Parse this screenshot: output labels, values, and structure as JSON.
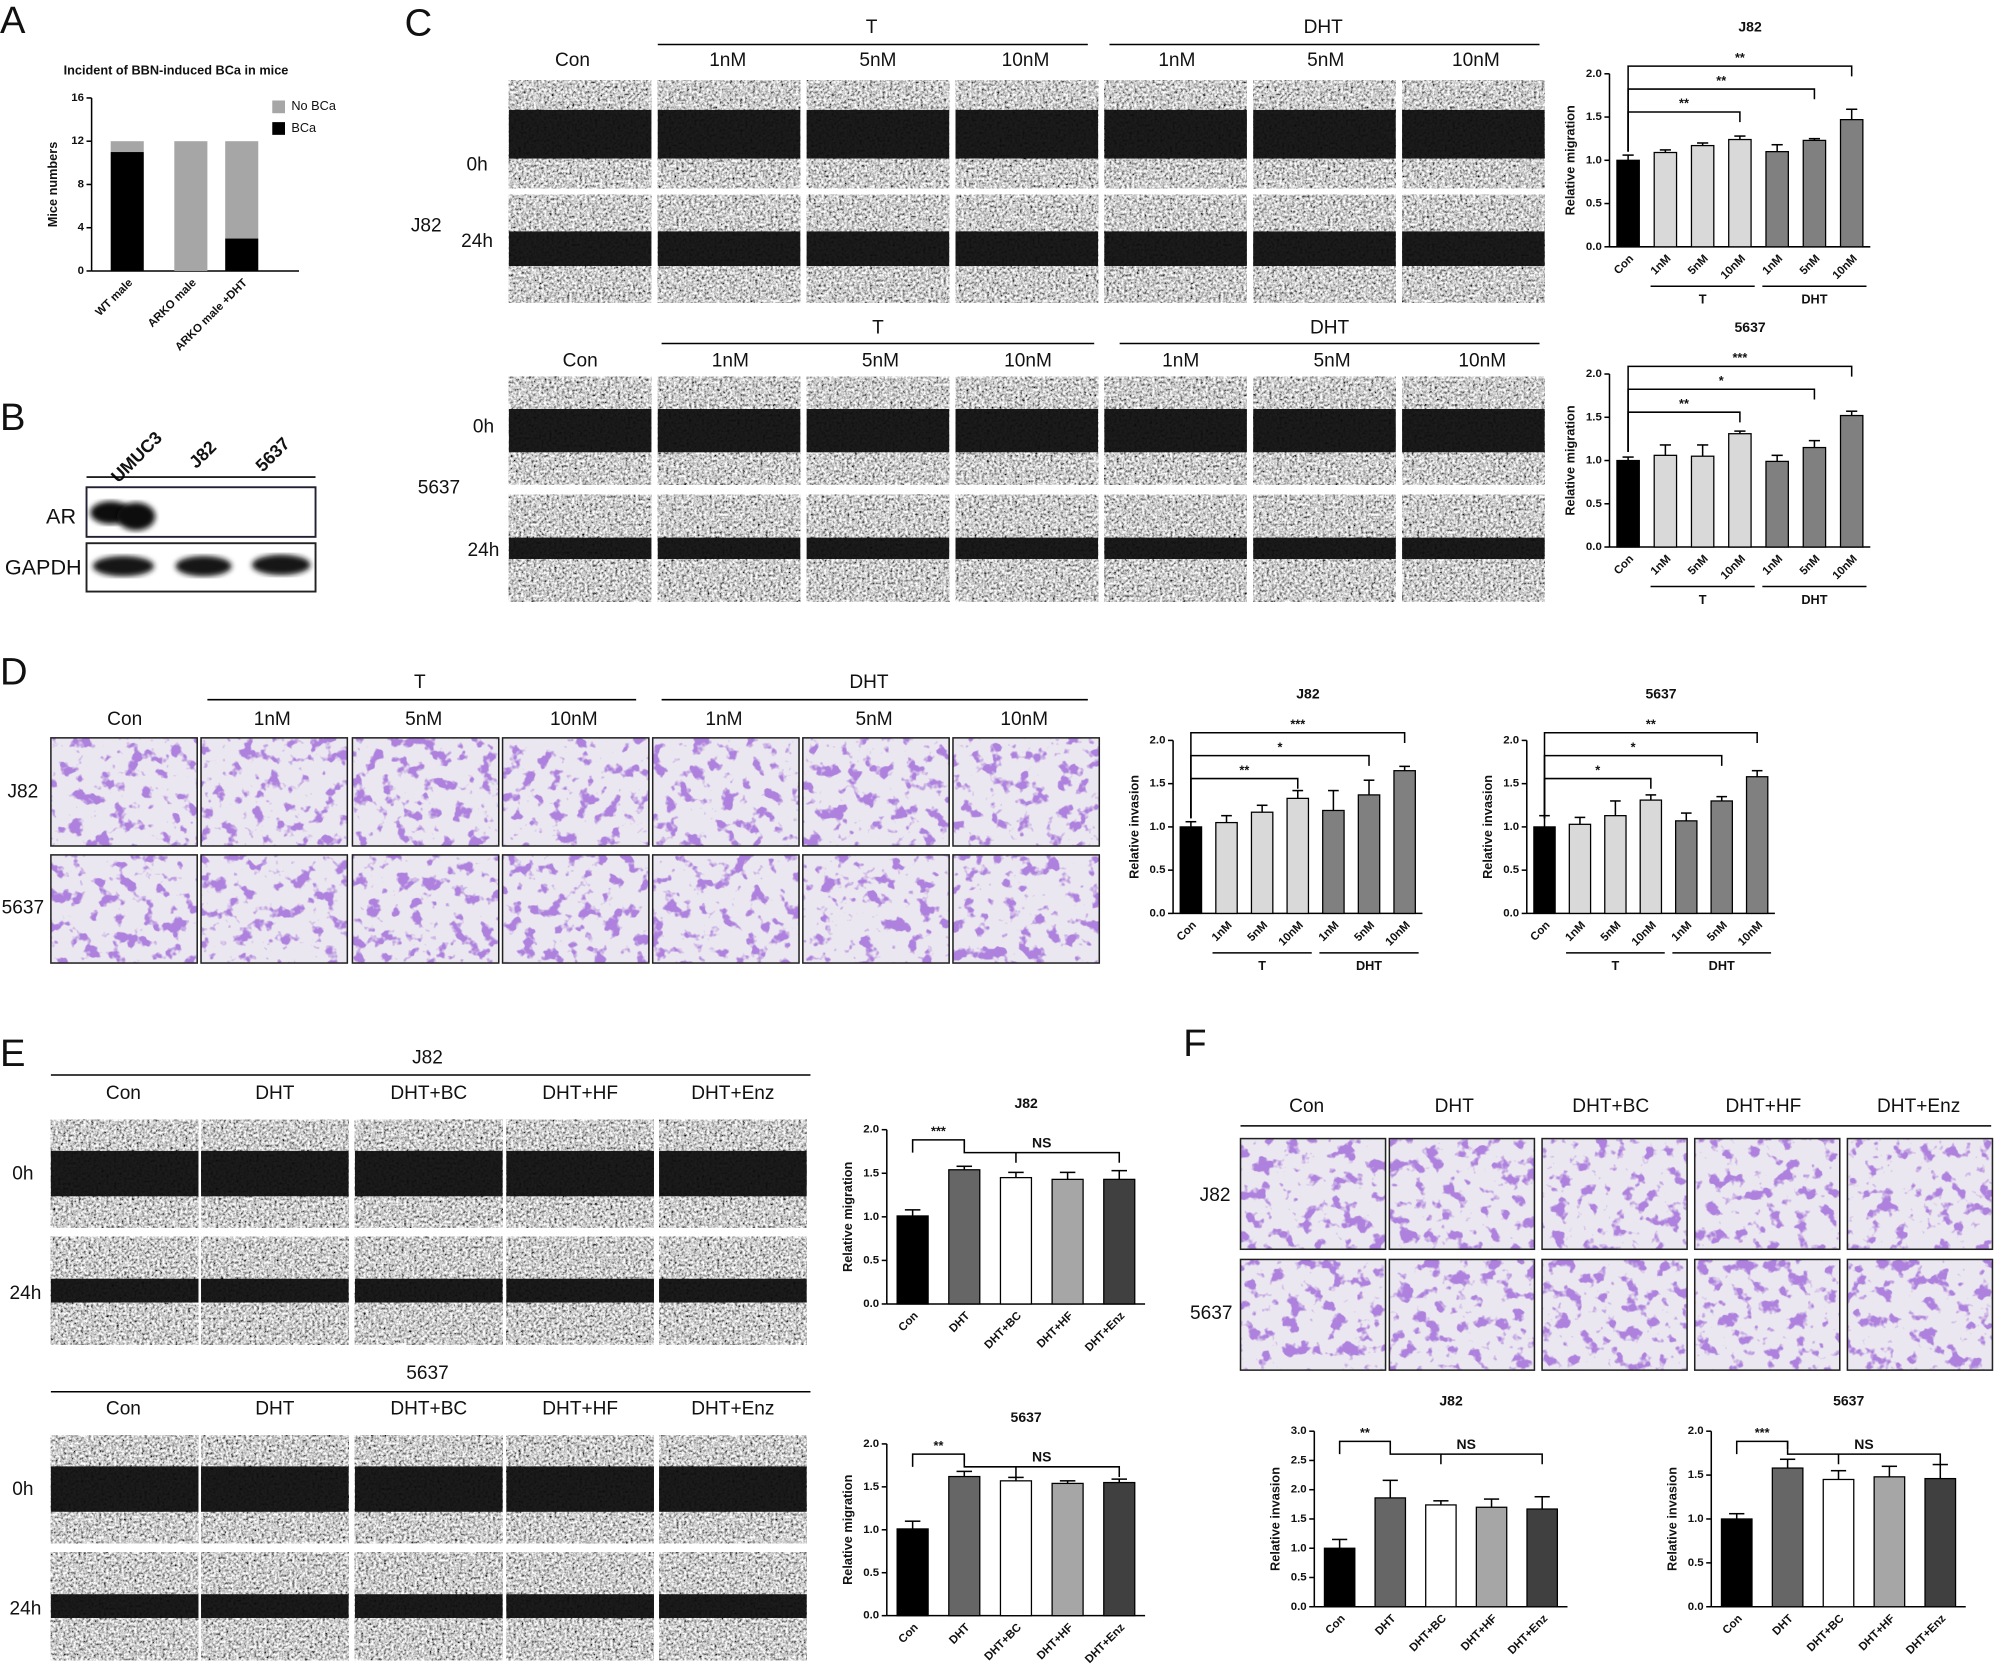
{
  "panel_labels": [
    "A",
    "B",
    "C",
    "D",
    "E",
    "F"
  ],
  "blot": {
    "lanes": [
      "UMUC3",
      "J82",
      "5637"
    ],
    "rows": [
      "AR",
      "GAPDH"
    ]
  },
  "panel_C": {
    "groups": [
      "T",
      "DHT"
    ],
    "conditions": [
      "Con",
      "1nM",
      "5nM",
      "10nM",
      "1nM",
      "5nM",
      "10nM"
    ],
    "timepoints": [
      "0h",
      "24h"
    ],
    "cell_lines": [
      "J82",
      "5637"
    ]
  },
  "panel_D": {
    "groups": [
      "T",
      "DHT"
    ],
    "conditions": [
      "Con",
      "1nM",
      "5nM",
      "10nM",
      "1nM",
      "5nM",
      "10nM"
    ],
    "cell_lines": [
      "J82",
      "5637"
    ]
  },
  "panel_E": {
    "cell_lines": [
      "J82",
      "5637"
    ],
    "conditions": [
      "Con",
      "DHT",
      "DHT+BC",
      "DHT+HF",
      "DHT+Enz"
    ],
    "timepoints": [
      "0h",
      "24h"
    ]
  },
  "panel_F": {
    "conditions": [
      "Con",
      "DHT",
      "DHT+BC",
      "DHT+HF",
      "DHT+Enz"
    ],
    "cell_lines": [
      "J82",
      "5637"
    ]
  },
  "chart_data": [
    {
      "type": "stacked_bar",
      "title": "Incident of BBN-induced BCa in mice",
      "y_label": "Mice numbers",
      "categories": [
        "WT male",
        "ARKO male",
        "ARKO male +DHT"
      ],
      "series": [
        {
          "name": "BCa",
          "color": "#000000",
          "values": [
            11,
            0,
            3
          ]
        },
        {
          "name": "No BCa",
          "color": "#a6a6a6",
          "values": [
            1,
            12,
            9
          ]
        }
      ],
      "ylim": [
        0,
        16
      ],
      "yticks": [
        0,
        4,
        8,
        12,
        16
      ]
    },
    {
      "type": "bar",
      "title": "J82",
      "y_label": "Relative migration",
      "categories": [
        "Con",
        "1nM",
        "5nM",
        "10nM",
        "1nM",
        "5nM",
        "10nM"
      ],
      "values": [
        1.0,
        1.09,
        1.17,
        1.24,
        1.1,
        1.23,
        1.47
      ],
      "errors": [
        0.06,
        0.03,
        0.03,
        0.04,
        0.08,
        0.02,
        0.12
      ],
      "colors": [
        "#000000",
        "#d9d9d9",
        "#d9d9d9",
        "#d9d9d9",
        "#808080",
        "#808080",
        "#808080"
      ],
      "ylim": [
        0,
        2
      ],
      "yticks": [
        {
          "value": 0,
          "label": "0.0"
        },
        0.5,
        {
          "value": 1,
          "label": "1.0"
        },
        1.5,
        {
          "value": 2,
          "label": "2.0"
        }
      ],
      "significance": [
        null,
        null,
        null,
        "**",
        null,
        "**",
        "**"
      ],
      "x_groups": [
        "T",
        "DHT"
      ]
    },
    {
      "type": "bar",
      "title": "5637",
      "y_label": "Relative migration",
      "categories": [
        "Con",
        "1nM",
        "5nM",
        "10nM",
        "1nM",
        "5nM",
        "10nM"
      ],
      "values": [
        1.0,
        1.06,
        1.05,
        1.31,
        0.99,
        1.15,
        1.52
      ],
      "errors": [
        0.04,
        0.12,
        0.13,
        0.03,
        0.07,
        0.08,
        0.05
      ],
      "colors": [
        "#000000",
        "#d9d9d9",
        "#d9d9d9",
        "#d9d9d9",
        "#808080",
        "#808080",
        "#808080"
      ],
      "ylim": [
        0,
        2
      ],
      "yticks": [
        {
          "value": 0,
          "label": "0.0"
        },
        0.5,
        {
          "value": 1,
          "label": "1.0"
        },
        1.5,
        {
          "value": 2,
          "label": "2.0"
        }
      ],
      "significance": [
        null,
        null,
        null,
        "**",
        null,
        "*",
        "***"
      ],
      "x_groups": [
        "T",
        "DHT"
      ]
    },
    {
      "type": "bar",
      "title": "J82",
      "y_label": "Relative invasion",
      "categories": [
        "Con",
        "1nM",
        "5nM",
        "10nM",
        "1nM",
        "5nM",
        "10nM"
      ],
      "values": [
        1.0,
        1.05,
        1.17,
        1.33,
        1.19,
        1.37,
        1.65
      ],
      "errors": [
        0.06,
        0.08,
        0.08,
        0.09,
        0.23,
        0.17,
        0.05
      ],
      "colors": [
        "#000000",
        "#d9d9d9",
        "#d9d9d9",
        "#d9d9d9",
        "#808080",
        "#808080",
        "#808080"
      ],
      "ylim": [
        0,
        2
      ],
      "yticks": [
        {
          "value": 0,
          "label": "0.0"
        },
        0.5,
        {
          "value": 1,
          "label": "1.0"
        },
        1.5,
        {
          "value": 2,
          "label": "2.0"
        }
      ],
      "significance": [
        null,
        null,
        null,
        "**",
        null,
        "*",
        "***"
      ],
      "x_groups": [
        "T",
        "DHT"
      ]
    },
    {
      "type": "bar",
      "title": "5637",
      "y_label": "Relative invasion",
      "categories": [
        "Con",
        "1nM",
        "5nM",
        "10nM",
        "1nM",
        "5nM",
        "10nM"
      ],
      "values": [
        1.0,
        1.03,
        1.13,
        1.31,
        1.07,
        1.3,
        1.58
      ],
      "errors": [
        0.13,
        0.08,
        0.17,
        0.06,
        0.09,
        0.05,
        0.07
      ],
      "colors": [
        "#000000",
        "#d9d9d9",
        "#d9d9d9",
        "#d9d9d9",
        "#808080",
        "#808080",
        "#808080"
      ],
      "ylim": [
        0,
        2
      ],
      "yticks": [
        {
          "value": 0,
          "label": "0.0"
        },
        0.5,
        {
          "value": 1,
          "label": "1.0"
        },
        1.5,
        {
          "value": 2,
          "label": "2.0"
        }
      ],
      "significance": [
        null,
        null,
        null,
        "*",
        null,
        "*",
        "**"
      ],
      "x_groups": [
        "T",
        "DHT"
      ]
    },
    {
      "type": "bar",
      "title": "J82",
      "y_label": "Relative migration",
      "categories": [
        "Con",
        "DHT",
        "DHT+BC",
        "DHT+HF",
        "DHT+Enz"
      ],
      "values": [
        1.01,
        1.54,
        1.45,
        1.43,
        1.43
      ],
      "errors": [
        0.07,
        0.04,
        0.06,
        0.08,
        0.1
      ],
      "colors": [
        "#000000",
        "#666666",
        "#ffffff",
        "#a6a6a6",
        "#404040"
      ],
      "ylim": [
        0,
        2
      ],
      "yticks": [
        {
          "value": 0,
          "label": "0.0"
        },
        0.5,
        {
          "value": 1,
          "label": "1.0"
        },
        1.5,
        {
          "value": 2,
          "label": "2.0"
        }
      ],
      "significance": [
        null,
        "***",
        null,
        null,
        null
      ],
      "group_significance": "NS"
    },
    {
      "type": "bar",
      "title": "5637",
      "y_label": "Relative migration",
      "categories": [
        "Con",
        "DHT",
        "DHT+BC",
        "DHT+HF",
        "DHT+Enz"
      ],
      "values": [
        1.01,
        1.62,
        1.57,
        1.54,
        1.55
      ],
      "errors": [
        0.09,
        0.06,
        0.04,
        0.03,
        0.04
      ],
      "colors": [
        "#000000",
        "#666666",
        "#ffffff",
        "#a6a6a6",
        "#404040"
      ],
      "ylim": [
        0,
        2
      ],
      "yticks": [
        {
          "value": 0,
          "label": "0.0"
        },
        0.5,
        {
          "value": 1,
          "label": "1.0"
        },
        1.5,
        {
          "value": 2,
          "label": "2.0"
        }
      ],
      "significance": [
        null,
        "**",
        null,
        null,
        null
      ],
      "group_significance": "NS"
    },
    {
      "type": "bar",
      "title": "J82",
      "y_label": "Relative invasion",
      "categories": [
        "Con",
        "DHT",
        "DHT+BC",
        "DHT+HF",
        "DHT+Enz"
      ],
      "values": [
        1.0,
        1.86,
        1.74,
        1.7,
        1.67
      ],
      "errors": [
        0.15,
        0.3,
        0.07,
        0.14,
        0.21
      ],
      "colors": [
        "#000000",
        "#666666",
        "#ffffff",
        "#a6a6a6",
        "#404040"
      ],
      "ylim": [
        0,
        3
      ],
      "yticks": [
        {
          "value": 0,
          "label": "0.0"
        },
        0.5,
        {
          "value": 1,
          "label": "1.0"
        },
        1.5,
        {
          "value": 2,
          "label": "2.0"
        },
        2.5,
        {
          "value": 3,
          "label": "3.0"
        }
      ],
      "significance": [
        null,
        "**",
        null,
        null,
        null
      ],
      "group_significance": "NS"
    },
    {
      "type": "bar",
      "title": "5637",
      "y_label": "Relative invasion",
      "categories": [
        "Con",
        "DHT",
        "DHT+BC",
        "DHT+HF",
        "DHT+Enz"
      ],
      "values": [
        1.0,
        1.58,
        1.45,
        1.48,
        1.46
      ],
      "errors": [
        0.06,
        0.1,
        0.1,
        0.12,
        0.16
      ],
      "colors": [
        "#000000",
        "#666666",
        "#ffffff",
        "#a6a6a6",
        "#404040"
      ],
      "ylim": [
        0,
        2
      ],
      "yticks": [
        {
          "value": 0,
          "label": "0.0"
        },
        0.5,
        {
          "value": 1,
          "label": "1.0"
        },
        1.5,
        {
          "value": 2,
          "label": "2.0"
        }
      ],
      "significance": [
        null,
        "***",
        null,
        null,
        null
      ],
      "group_significance": "NS"
    }
  ]
}
